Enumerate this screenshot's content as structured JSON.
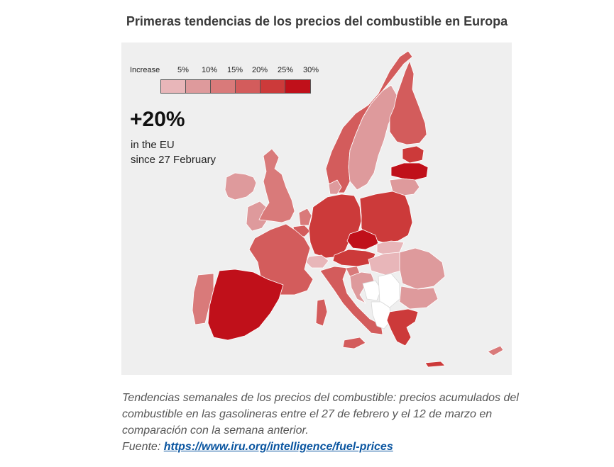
{
  "title": "Primeras tendencias de los precios del combustible en Europa",
  "map": {
    "background_color": "#efefef",
    "legend": {
      "label": "Increase",
      "steps": [
        {
          "label": "5%",
          "color": "#e8b6b9"
        },
        {
          "label": "10%",
          "color": "#de9a9c"
        },
        {
          "label": "15%",
          "color": "#d97a7a"
        },
        {
          "label": "20%",
          "color": "#d35c5c"
        },
        {
          "label": "25%",
          "color": "#cc3a3a"
        },
        {
          "label": "30%",
          "color": "#c0101a"
        }
      ]
    },
    "headline": {
      "value": "+20%",
      "line1": "in the EU",
      "line2": "since 27 February"
    },
    "no_data_color": "#ffffff"
  },
  "caption": {
    "text": "Tendencias semanales de los precios del combustible: precios acumulados del combustible en las gasolineras entre el 27 de febrero y el 12 de marzo en comparación con la semana anterior.",
    "source_label": "Fuente:",
    "source_link": "https://www.iru.org/intelligence/fuel-prices"
  }
}
